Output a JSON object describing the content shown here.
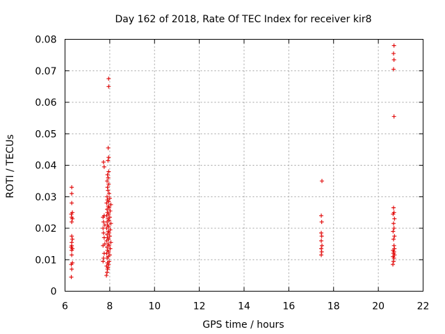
{
  "chart_data": {
    "type": "scatter",
    "title": "Day 162 of 2018, Rate Of TEC Index for receiver kir8",
    "xlabel": "GPS time / hours",
    "ylabel": "ROTI / TECUs",
    "xlim": [
      6,
      22
    ],
    "ylim": [
      0,
      0.08
    ],
    "xticks": [
      6,
      8,
      10,
      12,
      14,
      16,
      18,
      20,
      22
    ],
    "xtick_labels": [
      "6",
      "8",
      "10",
      "12",
      "14",
      "16",
      "18",
      "20",
      "22"
    ],
    "yticks": [
      0,
      0.01,
      0.02,
      0.03,
      0.04,
      0.05,
      0.06,
      0.07,
      0.08
    ],
    "ytick_labels": [
      "0",
      "0.01",
      "0.02",
      "0.03",
      "0.04",
      "0.05",
      "0.06",
      "0.07",
      "0.08"
    ],
    "grid": true,
    "marker": "+",
    "color": "#e00000",
    "series": [
      {
        "name": "ROTI",
        "points": [
          [
            6.28,
            0.0045
          ],
          [
            6.3,
            0.007
          ],
          [
            6.28,
            0.0085
          ],
          [
            6.33,
            0.009
          ],
          [
            6.3,
            0.0115
          ],
          [
            6.3,
            0.013
          ],
          [
            6.33,
            0.0135
          ],
          [
            6.28,
            0.014
          ],
          [
            6.3,
            0.0145
          ],
          [
            6.3,
            0.0155
          ],
          [
            6.33,
            0.0165
          ],
          [
            6.3,
            0.0175
          ],
          [
            6.3,
            0.022
          ],
          [
            6.33,
            0.023
          ],
          [
            6.3,
            0.0235
          ],
          [
            6.28,
            0.0245
          ],
          [
            6.33,
            0.025
          ],
          [
            6.3,
            0.028
          ],
          [
            6.3,
            0.031
          ],
          [
            6.3,
            0.033
          ],
          [
            7.7,
            0.0095
          ],
          [
            7.72,
            0.0105
          ],
          [
            7.75,
            0.012
          ],
          [
            7.7,
            0.0145
          ],
          [
            7.78,
            0.015
          ],
          [
            7.75,
            0.017
          ],
          [
            7.72,
            0.0185
          ],
          [
            7.7,
            0.02
          ],
          [
            7.78,
            0.021
          ],
          [
            7.72,
            0.022
          ],
          [
            7.75,
            0.024
          ],
          [
            7.7,
            0.0235
          ],
          [
            7.75,
            0.0395
          ],
          [
            7.72,
            0.041
          ],
          [
            7.85,
            0.005
          ],
          [
            7.88,
            0.006
          ],
          [
            7.9,
            0.007
          ],
          [
            7.92,
            0.0075
          ],
          [
            7.86,
            0.008
          ],
          [
            7.95,
            0.0085
          ],
          [
            7.9,
            0.009
          ],
          [
            7.97,
            0.0095
          ],
          [
            7.88,
            0.0105
          ],
          [
            7.93,
            0.011
          ],
          [
            8.0,
            0.0115
          ],
          [
            7.86,
            0.012
          ],
          [
            7.95,
            0.0125
          ],
          [
            7.9,
            0.013
          ],
          [
            8.02,
            0.0135
          ],
          [
            7.88,
            0.014
          ],
          [
            7.97,
            0.0145
          ],
          [
            7.92,
            0.015
          ],
          [
            8.05,
            0.0155
          ],
          [
            7.86,
            0.016
          ],
          [
            7.95,
            0.0165
          ],
          [
            7.9,
            0.017
          ],
          [
            8.0,
            0.0175
          ],
          [
            7.88,
            0.018
          ],
          [
            7.97,
            0.0185
          ],
          [
            7.93,
            0.019
          ],
          [
            8.02,
            0.0195
          ],
          [
            7.86,
            0.02
          ],
          [
            7.95,
            0.0205
          ],
          [
            7.9,
            0.021
          ],
          [
            8.05,
            0.0215
          ],
          [
            7.88,
            0.022
          ],
          [
            7.97,
            0.0225
          ],
          [
            7.92,
            0.023
          ],
          [
            8.0,
            0.0235
          ],
          [
            7.86,
            0.024
          ],
          [
            7.95,
            0.0245
          ],
          [
            7.9,
            0.025
          ],
          [
            8.02,
            0.0255
          ],
          [
            7.88,
            0.026
          ],
          [
            7.97,
            0.0265
          ],
          [
            7.93,
            0.027
          ],
          [
            8.05,
            0.0275
          ],
          [
            7.86,
            0.028
          ],
          [
            7.95,
            0.0285
          ],
          [
            7.9,
            0.029
          ],
          [
            8.0,
            0.0295
          ],
          [
            7.88,
            0.03
          ],
          [
            7.97,
            0.031
          ],
          [
            7.92,
            0.032
          ],
          [
            7.9,
            0.033
          ],
          [
            7.95,
            0.034
          ],
          [
            7.88,
            0.035
          ],
          [
            7.93,
            0.036
          ],
          [
            7.9,
            0.037
          ],
          [
            7.95,
            0.038
          ],
          [
            7.92,
            0.0415
          ],
          [
            7.95,
            0.0425
          ],
          [
            7.93,
            0.0455
          ],
          [
            7.95,
            0.065
          ],
          [
            7.95,
            0.0675
          ],
          [
            17.45,
            0.0115
          ],
          [
            17.47,
            0.0125
          ],
          [
            17.45,
            0.0135
          ],
          [
            17.48,
            0.0145
          ],
          [
            17.45,
            0.016
          ],
          [
            17.47,
            0.0175
          ],
          [
            17.45,
            0.0185
          ],
          [
            17.47,
            0.022
          ],
          [
            17.45,
            0.024
          ],
          [
            17.48,
            0.035
          ],
          [
            20.65,
            0.0085
          ],
          [
            20.68,
            0.0095
          ],
          [
            20.7,
            0.0105
          ],
          [
            20.66,
            0.011
          ],
          [
            20.72,
            0.0115
          ],
          [
            20.68,
            0.012
          ],
          [
            20.7,
            0.0125
          ],
          [
            20.66,
            0.013
          ],
          [
            20.72,
            0.0135
          ],
          [
            20.7,
            0.0145
          ],
          [
            20.68,
            0.0165
          ],
          [
            20.72,
            0.0175
          ],
          [
            20.66,
            0.019
          ],
          [
            20.7,
            0.02
          ],
          [
            20.68,
            0.0215
          ],
          [
            20.72,
            0.023
          ],
          [
            20.66,
            0.0245
          ],
          [
            20.7,
            0.025
          ],
          [
            20.68,
            0.0265
          ],
          [
            20.7,
            0.0555
          ],
          [
            20.68,
            0.0705
          ],
          [
            20.7,
            0.0735
          ],
          [
            20.68,
            0.0755
          ],
          [
            20.7,
            0.078
          ]
        ]
      }
    ]
  }
}
